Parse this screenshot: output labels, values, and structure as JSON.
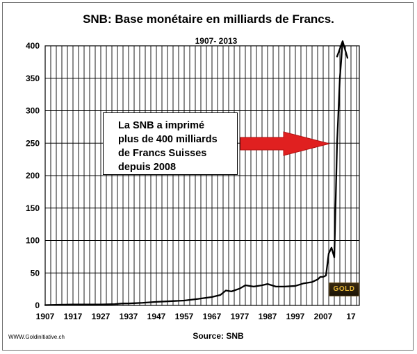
{
  "chart_data": {
    "type": "line",
    "title": "SNB: Base monétaire en milliards de Francs.",
    "subtitle": "1907-  2013",
    "source": "Source: SNB",
    "xlabel": "",
    "ylabel": "",
    "x_ticks": [
      "1907",
      "1917",
      "1927",
      "1937",
      "1947",
      "1957",
      "1967",
      "1977",
      "1987",
      "1997",
      "2007",
      "17"
    ],
    "y_ticks": [
      0,
      50,
      100,
      150,
      200,
      250,
      300,
      350,
      400
    ],
    "xlim": [
      1907,
      2020
    ],
    "ylim": [
      0,
      400
    ],
    "grid": true,
    "line_color": "#000000",
    "series": [
      {
        "name": "",
        "x": [
          1907,
          1912,
          1917,
          1922,
          1927,
          1932,
          1935,
          1937,
          1942,
          1947,
          1952,
          1957,
          1962,
          1967,
          1970,
          1972,
          1974,
          1977,
          1979,
          1982,
          1985,
          1987,
          1990,
          1993,
          1997,
          2000,
          2003,
          2005,
          2006,
          2007,
          2008,
          2009,
          2010,
          2011,
          2012,
          2013,
          2014
        ],
        "y": [
          0.5,
          1,
          1.5,
          1.5,
          1.5,
          2,
          3,
          3,
          4,
          5.5,
          6.5,
          7.5,
          10,
          13,
          16,
          23,
          21.5,
          26,
          31,
          29,
          31,
          33,
          29,
          29,
          30,
          34,
          36,
          40,
          44,
          44,
          46,
          80,
          89,
          74,
          250,
          350,
          407
        ]
      }
    ],
    "annotation": {
      "lines": [
        "La SNB a imprimé",
        "plus de 400 milliards",
        "de Francs Suisses",
        "depuis 2008"
      ],
      "arrow_color": "#e02020"
    }
  },
  "footer": {
    "website": "WWW.Goldinitiative.ch",
    "logo_text": "GOLD"
  }
}
